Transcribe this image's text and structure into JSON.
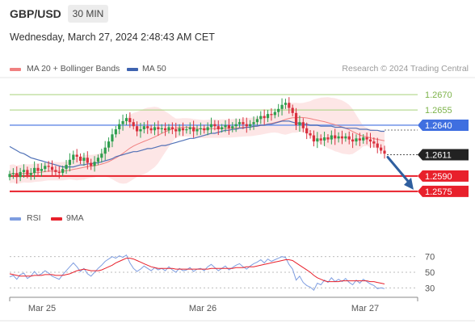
{
  "header": {
    "symbol": "GBP/USD",
    "timeframe": "30 MIN",
    "datetime": "Wednesday, March 27, 2024 2:48:43 AM CET"
  },
  "legend": {
    "ma20_label": "MA 20 + Bollinger Bands",
    "ma50_label": "MA 50",
    "research_label": "Research © 2024 Trading Central",
    "rsi_label": "RSI",
    "rsi_ma_label": "9MA"
  },
  "colors": {
    "ma20": "#f08080",
    "bollinger_fill": "#fde2e2",
    "ma50": "#3f64b0",
    "candle_up": "#2e9e4e",
    "candle_down": "#d9303e",
    "green_levels": "#a6d27a",
    "blue_level": "#7b9bea",
    "red_levels": "#e8202b",
    "current_price_badge": "#222222",
    "arrow": "#2f5f9f",
    "rsi": "#7e9de0",
    "rsi_ma": "#e8202b"
  },
  "chart_data": [
    {
      "type": "candlestick",
      "symbol": "GBP/USD",
      "timeframe": "30 MIN",
      "x_ticks": [
        "Mar 25",
        "Mar 26",
        "Mar 27"
      ],
      "y_range": [
        1.2555,
        1.269
      ],
      "grid": false,
      "levels": [
        {
          "value": 1.267,
          "label": "1.2670",
          "kind": "resistance"
        },
        {
          "value": 1.2655,
          "label": "1.2655",
          "kind": "resistance"
        },
        {
          "value": 1.264,
          "label": "1.2640",
          "kind": "pivot"
        },
        {
          "value": 1.259,
          "label": "1.2590",
          "kind": "support"
        },
        {
          "value": 1.2575,
          "label": "1.2575",
          "kind": "support"
        }
      ],
      "current_price": {
        "value": 1.2611,
        "label": "1.2611"
      },
      "forecast_arrow": {
        "from": 1.2611,
        "to": 1.2575
      },
      "series": [
        {
          "name": "MA 20 + Bollinger Bands",
          "role": "ma20"
        },
        {
          "name": "MA 50",
          "role": "ma50"
        }
      ],
      "close": [
        1.2592,
        1.2593,
        1.2589,
        1.2594,
        1.2596,
        1.2591,
        1.2593,
        1.2598,
        1.2595,
        1.2597,
        1.26,
        1.2599,
        1.2596,
        1.2594,
        1.2593,
        1.2597,
        1.2601,
        1.2606,
        1.2611,
        1.2609,
        1.2605,
        1.2608,
        1.2603,
        1.26,
        1.2604,
        1.2608,
        1.2612,
        1.2618,
        1.2624,
        1.2631,
        1.2636,
        1.2641,
        1.2644,
        1.2647,
        1.2643,
        1.2639,
        1.2634,
        1.2636,
        1.2639,
        1.2637,
        1.2635,
        1.2638,
        1.2636,
        1.2637,
        1.2635,
        1.2638,
        1.2636,
        1.2634,
        1.2637,
        1.2635,
        1.2636,
        1.2638,
        1.2634,
        1.2636,
        1.2637,
        1.2635,
        1.2638,
        1.2641,
        1.2639,
        1.2636,
        1.2638,
        1.264,
        1.2637,
        1.2639,
        1.2641,
        1.2643,
        1.2641,
        1.2639,
        1.2641,
        1.2643,
        1.2646,
        1.2649,
        1.2647,
        1.2651,
        1.265,
        1.2653,
        1.2656,
        1.266,
        1.2662,
        1.2657,
        1.2652,
        1.264,
        1.2643,
        1.2637,
        1.2632,
        1.263,
        1.2624,
        1.2627,
        1.2625,
        1.2628,
        1.2626,
        1.263,
        1.2627,
        1.2629,
        1.2627,
        1.2629,
        1.2626,
        1.2624,
        1.2627,
        1.2625,
        1.2628,
        1.2626,
        1.2624,
        1.2622,
        1.2618,
        1.2615,
        1.2612
      ],
      "ma50": [
        1.2619,
        1.2617,
        1.2615,
        1.2613,
        1.2612,
        1.261,
        1.2608,
        1.2607,
        1.2606,
        1.2605,
        1.2604,
        1.2603,
        1.2602,
        1.2601,
        1.26,
        1.2599,
        1.2599,
        1.2599,
        1.2599,
        1.26,
        1.2601,
        1.2601,
        1.2602,
        1.2602,
        1.2603,
        1.2603,
        1.2604,
        1.2605,
        1.2606,
        1.2607,
        1.2609,
        1.261,
        1.2611,
        1.2612,
        1.2613,
        1.2614,
        1.2614,
        1.2615,
        1.2616,
        1.2617,
        1.2617,
        1.2618,
        1.2619,
        1.262,
        1.262,
        1.2621,
        1.2622,
        1.2623,
        1.2624,
        1.2625,
        1.2626,
        1.2627,
        1.2627,
        1.2628,
        1.2629,
        1.263,
        1.2631,
        1.2632,
        1.2632,
        1.2633,
        1.2634,
        1.2635,
        1.2635,
        1.2636,
        1.2636,
        1.2637,
        1.2637,
        1.2638,
        1.2638,
        1.2639,
        1.2639,
        1.264,
        1.264,
        1.2641,
        1.2641,
        1.2642,
        1.2643,
        1.2644,
        1.2644,
        1.2644,
        1.2643,
        1.2642,
        1.2642,
        1.2641,
        1.2641,
        1.264,
        1.264,
        1.264,
        1.2639,
        1.2639,
        1.2639,
        1.2639,
        1.2638,
        1.2638,
        1.2638,
        1.2637,
        1.2637,
        1.2637,
        1.2637,
        1.2636,
        1.2636,
        1.2636,
        1.2635,
        1.2635,
        1.2635,
        1.2634,
        1.2634
      ]
    },
    {
      "type": "line",
      "title": "RSI",
      "y_ticks": [
        30,
        50,
        70
      ],
      "y_range": [
        20,
        80
      ],
      "series": [
        {
          "name": "RSI",
          "values": [
            44,
            46,
            41,
            47,
            49,
            42,
            45,
            51,
            46,
            48,
            52,
            49,
            45,
            43,
            41,
            47,
            52,
            57,
            62,
            57,
            51,
            55,
            48,
            45,
            50,
            55,
            59,
            64,
            67,
            70,
            68,
            71,
            69,
            72,
            62,
            55,
            51,
            54,
            58,
            55,
            52,
            56,
            53,
            55,
            52,
            57,
            53,
            50,
            55,
            52,
            53,
            56,
            51,
            54,
            55,
            52,
            57,
            60,
            56,
            52,
            55,
            58,
            53,
            56,
            59,
            61,
            57,
            54,
            58,
            61,
            63,
            66,
            62,
            67,
            64,
            66,
            68,
            70,
            69,
            60,
            54,
            40,
            45,
            37,
            33,
            31,
            27,
            36,
            34,
            40,
            37,
            43,
            38,
            41,
            38,
            42,
            37,
            34,
            40,
            36,
            41,
            38,
            35,
            33,
            29,
            30,
            29
          ]
        },
        {
          "name": "9MA",
          "values": [
            48,
            47,
            46,
            45,
            45,
            45,
            45,
            46,
            46,
            46,
            47,
            47,
            47,
            46,
            46,
            46,
            47,
            48,
            50,
            52,
            53,
            54,
            53,
            52,
            52,
            52,
            53,
            55,
            57,
            59,
            62,
            64,
            66,
            68,
            68,
            67,
            65,
            63,
            61,
            59,
            57,
            56,
            55,
            55,
            55,
            55,
            55,
            54,
            54,
            54,
            54,
            54,
            54,
            54,
            54,
            54,
            54,
            55,
            55,
            55,
            55,
            55,
            55,
            55,
            56,
            56,
            56,
            57,
            57,
            57,
            58,
            59,
            60,
            61,
            62,
            63,
            64,
            65,
            66,
            66,
            65,
            62,
            59,
            56,
            53,
            50,
            46,
            43,
            41,
            39,
            38,
            38,
            38,
            38,
            39,
            39,
            39,
            39,
            39,
            39,
            39,
            39,
            38,
            38,
            37,
            36,
            35
          ]
        }
      ]
    }
  ]
}
